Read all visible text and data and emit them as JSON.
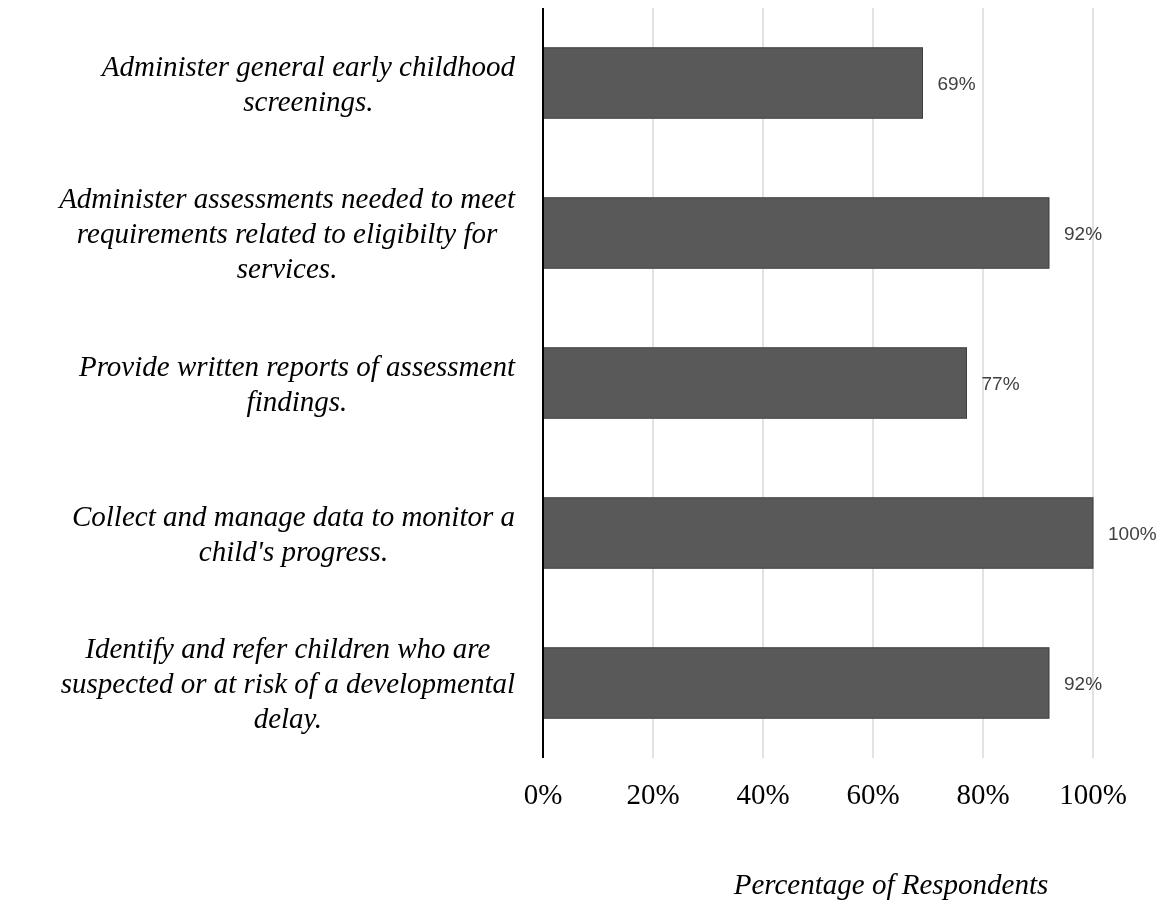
{
  "chart_data": {
    "type": "bar",
    "orientation": "horizontal",
    "categories": [
      "Administer general early childhood screenings.",
      "Administer assessments needed to meet requirements related to eligibilty for services.",
      "Provide written reports of assessment findings.",
      "Collect and manage data to monitor a child's progress.",
      "Identify and refer children who are suspected or at risk of a developmental delay."
    ],
    "values": [
      69,
      92,
      77,
      100,
      92
    ],
    "color": "#595959",
    "value_labels": [
      "69%",
      "92%",
      "77%",
      "100%",
      "92%"
    ],
    "xlim": [
      0,
      100
    ],
    "xticks": [
      {
        "value": 0,
        "label": "0%"
      },
      {
        "value": 20,
        "label": "20%"
      },
      {
        "value": 40,
        "label": "40%"
      },
      {
        "value": 60,
        "label": "60%"
      },
      {
        "value": 80,
        "label": "80%"
      },
      {
        "value": 100,
        "label": "100%"
      }
    ],
    "grid": "x",
    "xlabel": "Percentage of Respondents"
  }
}
